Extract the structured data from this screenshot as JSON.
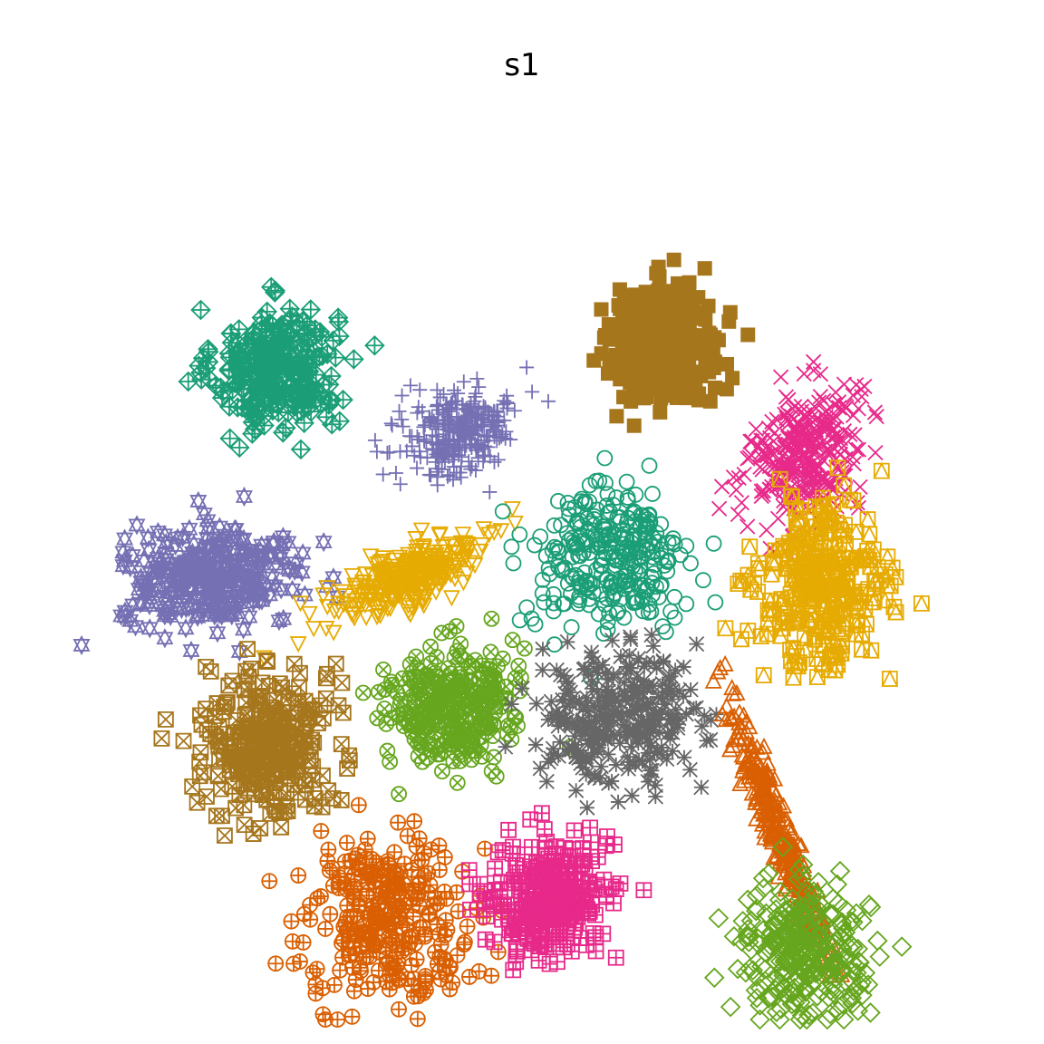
{
  "chart_data": {
    "type": "scatter",
    "title": "s1",
    "xlabel": "",
    "ylabel": "",
    "axes_visible": false,
    "grid": false,
    "legend": "none",
    "xlim": [
      0,
      100
    ],
    "ylim": [
      0,
      100
    ],
    "points_per_cluster": 300,
    "series": [
      {
        "id": "c1",
        "marker": "diamond-plus",
        "color": "#1B9E77",
        "center": [
          22,
          75
        ],
        "spread": [
          3.5,
          3.5
        ],
        "angle": 0
      },
      {
        "id": "c2",
        "marker": "plus",
        "color": "#7570B3",
        "center": [
          43,
          68
        ],
        "spread": [
          3.5,
          2.4
        ],
        "angle": 30
      },
      {
        "id": "c3",
        "marker": "filled-square",
        "color": "#A6761D",
        "center": [
          66,
          78
        ],
        "spread": [
          3.4,
          3.4
        ],
        "angle": 0
      },
      {
        "id": "c4",
        "marker": "x",
        "color": "#E7298A",
        "center": [
          82,
          65
        ],
        "spread": [
          2.8,
          4.2
        ],
        "angle": -25
      },
      {
        "id": "c5",
        "marker": "star-of-david",
        "color": "#7570B3",
        "center": [
          15,
          51
        ],
        "spread": [
          5.2,
          2.8
        ],
        "angle": 0
      },
      {
        "id": "c6",
        "marker": "triangle-down",
        "color": "#E6AB02",
        "center": [
          37,
          51
        ],
        "spread": [
          4.5,
          1.6
        ],
        "angle": 25
      },
      {
        "id": "c7",
        "marker": "circle",
        "color": "#1B9E77",
        "center": [
          60,
          53
        ],
        "spread": [
          4.5,
          4.2
        ],
        "angle": 0
      },
      {
        "id": "c8",
        "marker": "square-triangle",
        "color": "#E6AB02",
        "center": [
          84,
          50
        ],
        "spread": [
          3.6,
          4.8
        ],
        "angle": 0
      },
      {
        "id": "c9",
        "marker": "square-x",
        "color": "#A6761D",
        "center": [
          21,
          32
        ],
        "spread": [
          3.6,
          4.4
        ],
        "angle": 0
      },
      {
        "id": "c10",
        "marker": "circle-x",
        "color": "#66A61E",
        "center": [
          42,
          36
        ],
        "spread": [
          3.6,
          3.4
        ],
        "angle": 0
      },
      {
        "id": "c11",
        "marker": "asterisk",
        "color": "#666666",
        "center": [
          61,
          35
        ],
        "spread": [
          4.4,
          3.8
        ],
        "angle": 0
      },
      {
        "id": "c12",
        "marker": "triangle-up",
        "color": "#D95F02",
        "center": [
          79,
          22
        ],
        "spread": [
          0.8,
          7.5
        ],
        "angle": 20
      },
      {
        "id": "c13",
        "marker": "circle-plus",
        "color": "#D95F02",
        "center": [
          35,
          12
        ],
        "spread": [
          4.8,
          4.6
        ],
        "angle": 0
      },
      {
        "id": "c14",
        "marker": "square-plus",
        "color": "#E7298A",
        "center": [
          53,
          14
        ],
        "spread": [
          3.8,
          3.0
        ],
        "angle": 40
      },
      {
        "id": "c15",
        "marker": "diamond",
        "color": "#66A61E",
        "center": [
          82,
          8
        ],
        "spread": [
          3.6,
          3.8
        ],
        "angle": 0
      }
    ]
  }
}
